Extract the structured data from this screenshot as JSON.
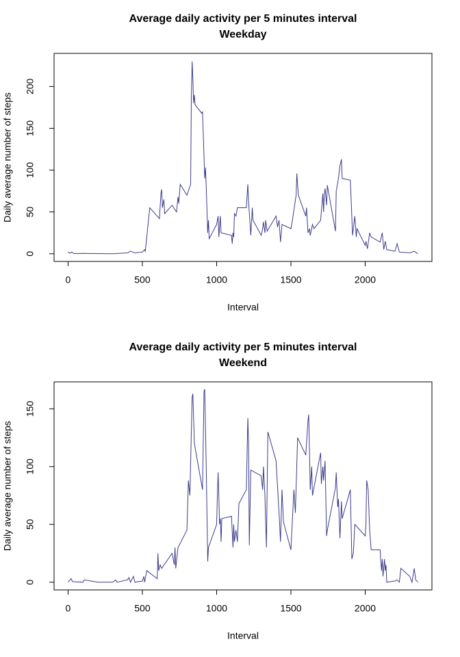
{
  "chart_data": [
    {
      "type": "line",
      "title": "Average daily activity per 5 minutes interval",
      "subtitle": "Weekday",
      "xlabel": "Interval",
      "ylabel": "Daily average number of steps",
      "color": "#3c3a8a",
      "xlim": [
        -94.2,
        2449.2
      ],
      "xticks": [
        0,
        500,
        1000,
        1500,
        2000
      ],
      "ylim": [
        -9.2,
        239.6
      ],
      "yticks": [
        0,
        50,
        100,
        150,
        200
      ],
      "x": [
        0,
        10,
        25,
        40,
        100,
        200,
        300,
        400,
        420,
        450,
        500,
        515,
        520,
        550,
        600,
        615,
        625,
        630,
        635,
        645,
        650,
        700,
        730,
        740,
        745,
        755,
        800,
        825,
        830,
        835,
        840,
        845,
        850,
        855,
        900,
        905,
        920,
        925,
        930,
        940,
        945,
        950,
        1000,
        1010,
        1015,
        1025,
        1030,
        1100,
        1105,
        1110,
        1115,
        1120,
        1130,
        1140,
        1200,
        1210,
        1215,
        1230,
        1240,
        1245,
        1300,
        1310,
        1315,
        1325,
        1330,
        1340,
        1400,
        1410,
        1420,
        1430,
        1440,
        1500,
        1510,
        1535,
        1540,
        1550,
        1600,
        1605,
        1615,
        1625,
        1630,
        1645,
        1655,
        1700,
        1715,
        1720,
        1725,
        1730,
        1740,
        1745,
        1800,
        1805,
        1820,
        1830,
        1840,
        1845,
        1900,
        1915,
        1930,
        1940,
        1945,
        2000,
        2005,
        2015,
        2030,
        2040,
        2100,
        2115,
        2125,
        2135,
        2145,
        2200,
        2215,
        2230,
        2300,
        2330,
        2355
      ],
      "values": [
        2.3,
        0.5,
        2,
        0.2,
        0.4,
        0.2,
        0,
        1,
        3,
        1,
        2,
        5,
        3,
        55,
        45,
        42,
        72,
        77,
        55,
        65,
        48,
        58,
        50,
        68,
        60,
        83,
        70,
        83,
        190,
        230,
        210,
        180,
        190,
        178,
        168,
        170,
        90,
        103,
        80,
        25,
        40,
        18,
        35,
        45,
        20,
        45,
        25,
        22,
        12,
        25,
        20,
        48,
        45,
        55,
        55,
        83,
        62,
        22,
        55,
        40,
        22,
        30,
        38,
        25,
        40,
        27,
        45,
        32,
        40,
        14,
        35,
        30,
        40,
        70,
        96,
        70,
        45,
        55,
        25,
        30,
        22,
        35,
        30,
        40,
        72,
        50,
        72,
        78,
        58,
        82,
        27,
        75,
        90,
        105,
        113,
        90,
        88,
        22,
        45,
        20,
        30,
        10,
        15,
        6,
        25,
        20,
        14,
        25,
        5,
        15,
        5,
        3,
        12,
        2,
        1,
        3,
        0
      ]
    },
    {
      "type": "line",
      "title": "Average daily activity per 5 minutes interval",
      "subtitle": "Weekend",
      "xlabel": "Interval",
      "ylabel": "Daily average number of steps",
      "color": "#3c3a8a",
      "xlim": [
        -94.2,
        2449.2
      ],
      "xticks": [
        0,
        500,
        1000,
        1500,
        2000
      ],
      "ylim": [
        -6.7,
        173.3
      ],
      "yticks": [
        0,
        50,
        100,
        150
      ],
      "x": [
        0,
        20,
        30,
        100,
        110,
        200,
        300,
        320,
        330,
        400,
        410,
        420,
        440,
        450,
        500,
        510,
        515,
        530,
        600,
        605,
        610,
        620,
        630,
        700,
        715,
        720,
        725,
        740,
        800,
        810,
        820,
        835,
        840,
        850,
        905,
        915,
        920,
        930,
        940,
        945,
        1000,
        1005,
        1010,
        1020,
        1025,
        1030,
        1035,
        1100,
        1110,
        1115,
        1120,
        1130,
        1140,
        1150,
        1200,
        1210,
        1215,
        1220,
        1230,
        1300,
        1310,
        1315,
        1325,
        1335,
        1345,
        1400,
        1420,
        1430,
        1440,
        1450,
        1500,
        1520,
        1530,
        1545,
        1600,
        1615,
        1620,
        1630,
        1640,
        1645,
        1700,
        1705,
        1715,
        1720,
        1730,
        1740,
        1745,
        1800,
        1805,
        1815,
        1820,
        1830,
        1840,
        1845,
        1900,
        1910,
        1920,
        1930,
        2000,
        2005,
        2010,
        2020,
        2030,
        2040,
        2100,
        2110,
        2115,
        2120,
        2130,
        2135,
        2140,
        2145,
        2200,
        2215,
        2230,
        2240,
        2300,
        2315,
        2330,
        2340,
        2355
      ],
      "values": [
        0.2,
        3,
        0.5,
        0,
        2,
        0,
        0,
        2,
        0,
        2,
        4,
        0,
        5,
        0,
        1,
        5,
        0,
        10,
        3,
        25,
        10,
        15,
        12,
        25,
        15,
        30,
        12,
        30,
        45,
        88,
        75,
        160,
        163,
        120,
        80,
        165,
        167,
        100,
        18,
        30,
        50,
        75,
        95,
        50,
        55,
        35,
        55,
        57,
        30,
        50,
        35,
        45,
        35,
        68,
        80,
        142,
        120,
        32,
        97,
        92,
        80,
        100,
        75,
        30,
        130,
        105,
        60,
        35,
        80,
        52,
        28,
        80,
        60,
        125,
        110,
        140,
        145,
        80,
        100,
        75,
        112,
        85,
        100,
        88,
        105,
        40,
        45,
        82,
        95,
        65,
        72,
        38,
        70,
        55,
        80,
        20,
        25,
        50,
        40,
        50,
        88,
        80,
        45,
        28,
        28,
        10,
        20,
        5,
        20,
        10,
        15,
        0,
        1,
        2,
        0,
        12,
        5,
        0,
        12,
        2,
        0
      ]
    }
  ]
}
